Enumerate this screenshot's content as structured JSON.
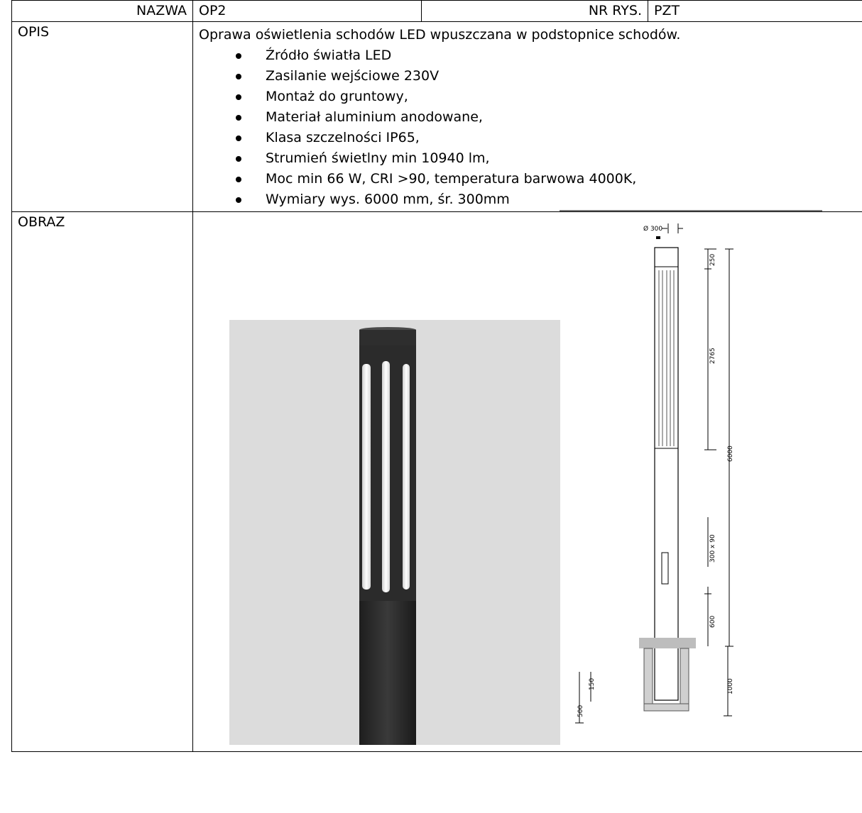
{
  "header": {
    "name_label": "NAZWA",
    "name_value": "OP2",
    "drawing_no_label": "NR RYS.",
    "drawing_no_value": "PZT"
  },
  "description": {
    "label": "OPIS",
    "intro": "Oprawa oświetlenia schodów LED  wpuszczana w podstopnice schodów.",
    "features": [
      "Źródło światła LED",
      "Zasilanie wejściowe 230V",
      "Montaż do gruntowy,",
      "Materiał aluminium anodowane,",
      "Klasa szczelności IP65,",
      "Strumień świetlny min  10940 lm,",
      "Moc min 66 W, CRI >90, temperatura barwowa 4000K,",
      "Wymiary wys. 6000 mm, śr. 300mm"
    ]
  },
  "image": {
    "label": "OBRAZ",
    "drawing_dims": {
      "diameter": "Ø 300",
      "top_cap": "250",
      "light_section": "2765",
      "total_height": "6000",
      "door": "300 x 90",
      "door_offset": "600",
      "foundation": "1000",
      "base_depth": "500",
      "base_lip": "150"
    }
  }
}
